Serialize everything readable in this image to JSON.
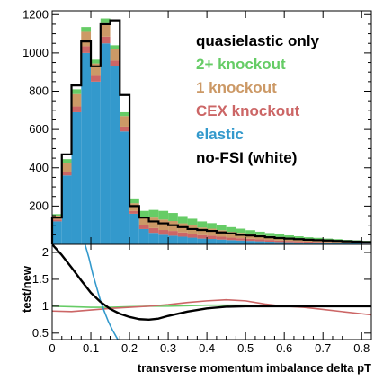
{
  "chart_data": [
    {
      "type": "bar",
      "panel": "top",
      "stacked": true,
      "x_bin_edges": [
        0,
        0.025,
        0.05,
        0.075,
        0.1,
        0.125,
        0.15,
        0.175,
        0.2,
        0.225,
        0.25,
        0.275,
        0.3,
        0.325,
        0.35,
        0.375,
        0.4,
        0.425,
        0.45,
        0.475,
        0.5,
        0.525,
        0.55,
        0.575,
        0.6,
        0.625,
        0.65,
        0.675,
        0.7,
        0.725,
        0.75,
        0.775,
        0.8,
        0.825
      ],
      "series": [
        {
          "name": "elastic",
          "color": "#3399cc",
          "values": [
            120,
            360,
            690,
            1000,
            850,
            1050,
            930,
            590,
            160,
            80,
            60,
            50,
            45,
            40,
            35,
            30,
            28,
            25,
            22,
            20,
            18,
            16,
            14,
            12,
            11,
            10,
            9,
            8,
            7,
            6,
            5,
            5,
            4
          ]
        },
        {
          "name": "CEX knockout",
          "color": "#cc6666",
          "values": [
            10,
            20,
            30,
            35,
            30,
            35,
            30,
            25,
            15,
            20,
            25,
            25,
            25,
            22,
            20,
            18,
            17,
            15,
            13,
            12,
            11,
            10,
            9,
            8,
            7,
            6,
            5,
            5,
            4,
            4,
            3,
            3,
            3
          ]
        },
        {
          "name": "1 knockout",
          "color": "#cc9966",
          "values": [
            20,
            45,
            65,
            75,
            65,
            70,
            60,
            55,
            40,
            45,
            55,
            55,
            52,
            48,
            44,
            40,
            37,
            34,
            30,
            28,
            25,
            22,
            20,
            18,
            16,
            14,
            12,
            11,
            10,
            9,
            8,
            7,
            6
          ]
        },
        {
          "name": "2+ knockout",
          "color": "#66cc66",
          "values": [
            8,
            20,
            25,
            25,
            20,
            25,
            20,
            20,
            25,
            30,
            40,
            45,
            42,
            38,
            35,
            32,
            29,
            27,
            25,
            22,
            20,
            18,
            16,
            14,
            13,
            12,
            11,
            10,
            9,
            8,
            7,
            6,
            5
          ]
        }
      ],
      "no_fsi_values": [
        140,
        470,
        830,
        1060,
        930,
        1150,
        1170,
        780,
        200,
        140,
        120,
        110,
        100,
        90,
        80,
        75,
        70,
        62,
        57,
        50,
        46,
        42,
        37,
        33,
        30,
        27,
        24,
        22,
        20,
        18,
        16,
        14,
        12
      ],
      "xlim": [
        0,
        0.825
      ],
      "ylim": [
        0,
        1220
      ],
      "yticks": [
        200,
        400,
        600,
        800,
        1000,
        1200
      ],
      "legend": {
        "placement": "top-right",
        "entries": [
          {
            "label": "quasielastic only",
            "color": "#000000"
          },
          {
            "label": "2+ knockout",
            "color": "#66cc66"
          },
          {
            "label": "1 knockout",
            "color": "#cc9966"
          },
          {
            "label": "CEX knockout",
            "color": "#cc6666"
          },
          {
            "label": "elastic",
            "color": "#3399cc"
          },
          {
            "label": "no-FSI (white)",
            "color": "#000000"
          }
        ]
      }
    },
    {
      "type": "line",
      "panel": "bottom",
      "ylabel": "test/new",
      "xlabel": "transverse momentum imbalance delta pT",
      "xlim": [
        0,
        0.825
      ],
      "ylim": [
        0.38,
        2.15
      ],
      "xticks": [
        0,
        0.1,
        0.2,
        0.3,
        0.4,
        0.5,
        0.6,
        0.7,
        0.8
      ],
      "yticks": [
        0.5,
        1,
        1.5,
        2
      ],
      "series": [
        {
          "name": "black",
          "color": "#000000",
          "x": [
            0,
            0.025,
            0.05,
            0.075,
            0.1,
            0.125,
            0.15,
            0.175,
            0.2,
            0.225,
            0.25,
            0.275,
            0.3,
            0.35,
            0.4,
            0.45,
            0.5,
            0.55,
            0.6,
            0.65,
            0.7,
            0.75,
            0.8,
            0.825
          ],
          "y": [
            2.15,
            1.95,
            1.72,
            1.48,
            1.25,
            1.08,
            0.95,
            0.86,
            0.8,
            0.76,
            0.75,
            0.77,
            0.82,
            0.9,
            0.96,
            0.99,
            1.0,
            1.0,
            1.0,
            1.0,
            1.0,
            1.0,
            1.0,
            1.0
          ]
        },
        {
          "name": "red",
          "color": "#cc6666",
          "x": [
            0,
            0.05,
            0.1,
            0.15,
            0.2,
            0.25,
            0.3,
            0.35,
            0.4,
            0.45,
            0.5,
            0.55,
            0.6,
            0.65,
            0.7,
            0.75,
            0.8,
            0.825
          ],
          "y": [
            0.91,
            0.9,
            0.93,
            0.96,
            0.98,
            1.0,
            1.03,
            1.07,
            1.1,
            1.12,
            1.1,
            1.04,
            1.0,
            0.98,
            0.94,
            0.9,
            0.86,
            0.84
          ]
        },
        {
          "name": "green",
          "color": "#66cc66",
          "x": [
            0,
            0.05,
            0.1,
            0.15,
            0.2,
            0.25,
            0.3,
            0.35,
            0.4,
            0.45,
            0.5,
            0.55,
            0.6,
            0.65,
            0.7,
            0.75,
            0.8,
            0.825
          ],
          "y": [
            1.0,
            0.99,
            0.98,
            0.98,
            0.99,
            1.0,
            1.0,
            1.01,
            1.02,
            1.02,
            1.02,
            1.01,
            1.01,
            1.0,
            1.0,
            1.0,
            1.0,
            1.0
          ]
        },
        {
          "name": "blue",
          "color": "#3399cc",
          "x": [
            0.085,
            0.095,
            0.105,
            0.115,
            0.125,
            0.135,
            0.145,
            0.155,
            0.165,
            0.17
          ],
          "y": [
            2.15,
            1.9,
            1.6,
            1.35,
            1.1,
            0.9,
            0.72,
            0.57,
            0.44,
            0.38
          ]
        }
      ]
    }
  ]
}
